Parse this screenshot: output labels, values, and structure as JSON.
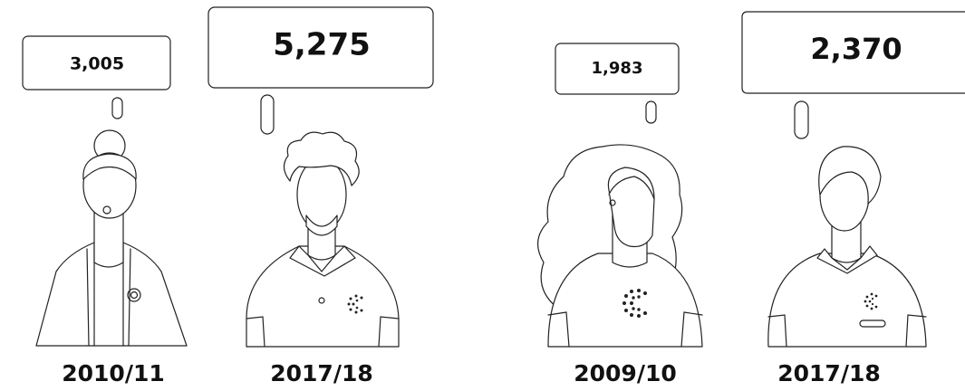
{
  "figures": [
    {
      "value": "3,005",
      "period": "2010/11"
    },
    {
      "value": "5,275",
      "period": "2017/18"
    },
    {
      "value": "1,983",
      "period": "2009/10"
    },
    {
      "value": "2,370",
      "period": "2017/18"
    }
  ]
}
